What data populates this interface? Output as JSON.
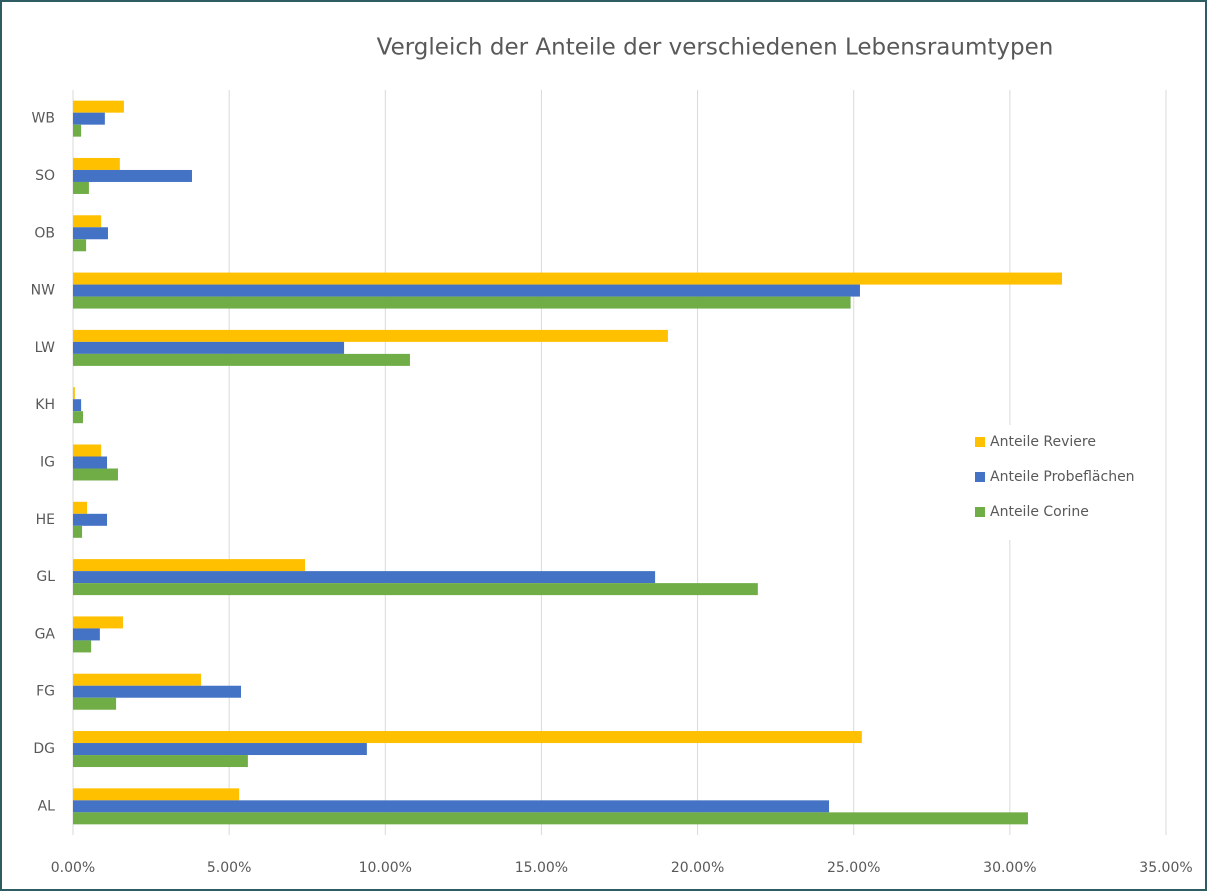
{
  "chart_data": {
    "type": "hbar",
    "title": "Vergleich der Anteile der verschiedenen Lebensraumtypen",
    "categories": [
      "AL",
      "DG",
      "FG",
      "GA",
      "GL",
      "HE",
      "IG",
      "KH",
      "LW",
      "NW",
      "OB",
      "SO",
      "WB"
    ],
    "series": [
      {
        "name": "Anteile Reviere",
        "color": "#ffc000",
        "values": [
          5.32,
          25.26,
          4.1,
          1.6,
          7.43,
          0.45,
          0.9,
          0.06,
          19.05,
          31.67,
          0.9,
          1.5,
          1.63
        ]
      },
      {
        "name": "Anteile Probeflächen",
        "color": "#4472c4",
        "values": [
          24.21,
          9.41,
          5.38,
          0.86,
          18.64,
          1.09,
          1.09,
          0.26,
          8.68,
          25.2,
          1.12,
          3.81,
          1.02
        ]
      },
      {
        "name": "Anteile Corine",
        "color": "#70ad47",
        "values": [
          30.58,
          5.6,
          1.38,
          0.58,
          21.93,
          0.29,
          1.44,
          0.32,
          10.79,
          24.9,
          0.42,
          0.51,
          0.26
        ]
      }
    ],
    "xlim": [
      0,
      35
    ],
    "xticks": [
      {
        "value": 0,
        "label": "0.00%"
      },
      {
        "value": 5,
        "label": "5.00%"
      },
      {
        "value": 10,
        "label": "10.00%"
      },
      {
        "value": 15,
        "label": "15.00%"
      },
      {
        "value": 20,
        "label": "20.00%"
      },
      {
        "value": 25,
        "label": "25.00%"
      },
      {
        "value": 30,
        "label": "30.00%"
      },
      {
        "value": 35,
        "label": "35.00%"
      }
    ],
    "grid": true,
    "legend": "right"
  }
}
